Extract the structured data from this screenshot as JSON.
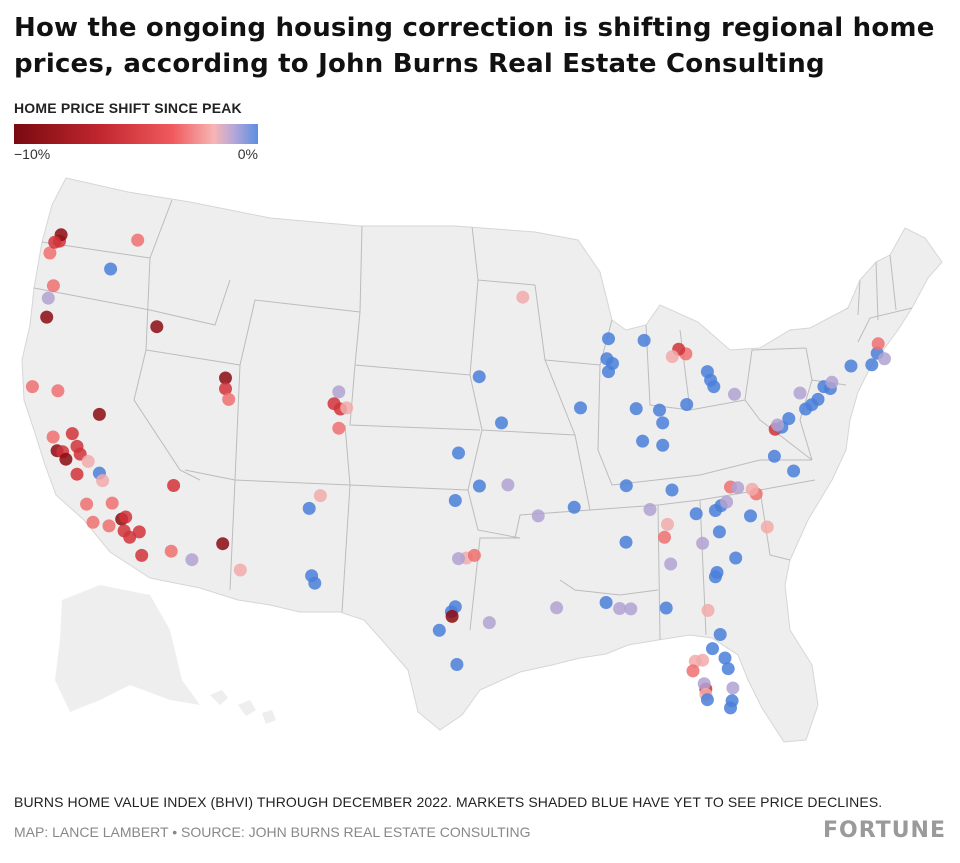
{
  "title": "How the ongoing housing correction is shifting regional home prices, according to John Burns Real Estate Consulting",
  "legend": {
    "title": "HOME PRICE SHIFT SINCE PEAK",
    "min_label": "−10%",
    "max_label": "0%"
  },
  "footnote": "BURNS HOME VALUE INDEX (BHVI) THROUGH DECEMBER 2022. MARKETS SHADED BLUE HAVE YET TO SEE PRICE DECLINES.",
  "credit": "MAP: LANCE LAMBERT • SOURCE: JOHN BURNS REAL ESTATE CONSULTING",
  "brand": "FORTUNE",
  "colors": {
    "dark_red": "#8b0a10",
    "red": "#d0333a",
    "light_red": "#ee6e6e",
    "pink": "#f2aaaa",
    "lavender": "#b0a2d2",
    "blue": "#4a7fd9",
    "land": "#eeeeee",
    "border": "#bdbdbd"
  },
  "markers": [
    {
      "lon": -122.3,
      "lat": 47.6,
      "c": "red"
    },
    {
      "lon": -122.2,
      "lat": 47.9,
      "c": "dark_red"
    },
    {
      "lon": -122.9,
      "lat": 47.05,
      "c": "light_red"
    },
    {
      "lon": -122.6,
      "lat": 47.55,
      "c": "red"
    },
    {
      "lon": -117.4,
      "lat": 47.65,
      "c": "light_red"
    },
    {
      "lon": -119.1,
      "lat": 46.3,
      "c": "blue"
    },
    {
      "lon": -122.68,
      "lat": 45.52,
      "c": "light_red"
    },
    {
      "lon": -123.0,
      "lat": 44.94,
      "c": "lavender"
    },
    {
      "lon": -123.1,
      "lat": 44.05,
      "c": "dark_red"
    },
    {
      "lon": -116.2,
      "lat": 43.6,
      "c": "dark_red"
    },
    {
      "lon": -122.4,
      "lat": 40.6,
      "c": "light_red"
    },
    {
      "lon": -124.0,
      "lat": 40.8,
      "c": "light_red"
    },
    {
      "lon": -119.8,
      "lat": 39.5,
      "c": "dark_red"
    },
    {
      "lon": -121.5,
      "lat": 38.6,
      "c": "red"
    },
    {
      "lon": -121.2,
      "lat": 38.0,
      "c": "red"
    },
    {
      "lon": -122.45,
      "lat": 37.8,
      "c": "dark_red"
    },
    {
      "lon": -122.1,
      "lat": 37.75,
      "c": "red"
    },
    {
      "lon": -121.9,
      "lat": 37.4,
      "c": "dark_red"
    },
    {
      "lon": -122.7,
      "lat": 38.44,
      "c": "light_red"
    },
    {
      "lon": -121.0,
      "lat": 37.64,
      "c": "red"
    },
    {
      "lon": -120.5,
      "lat": 37.3,
      "c": "pink"
    },
    {
      "lon": -121.2,
      "lat": 36.7,
      "c": "red"
    },
    {
      "lon": -119.8,
      "lat": 36.75,
      "c": "blue"
    },
    {
      "lon": -119.6,
      "lat": 36.4,
      "c": "pink"
    },
    {
      "lon": -120.6,
      "lat": 35.3,
      "c": "light_red"
    },
    {
      "lon": -119.0,
      "lat": 35.35,
      "c": "light_red"
    },
    {
      "lon": -118.4,
      "lat": 34.6,
      "c": "dark_red"
    },
    {
      "lon": -118.15,
      "lat": 34.7,
      "c": "red"
    },
    {
      "lon": -120.2,
      "lat": 34.45,
      "c": "light_red"
    },
    {
      "lon": -119.2,
      "lat": 34.28,
      "c": "light_red"
    },
    {
      "lon": -118.25,
      "lat": 34.05,
      "c": "red"
    },
    {
      "lon": -117.9,
      "lat": 33.75,
      "c": "red"
    },
    {
      "lon": -117.3,
      "lat": 34.0,
      "c": "red"
    },
    {
      "lon": -117.15,
      "lat": 32.9,
      "c": "red"
    },
    {
      "lon": -115.3,
      "lat": 33.1,
      "c": "light_red"
    },
    {
      "lon": -115.15,
      "lat": 36.17,
      "c": "red"
    },
    {
      "lon": -114.0,
      "lat": 32.7,
      "c": "lavender"
    },
    {
      "lon": -112.07,
      "lat": 33.45,
      "c": "dark_red"
    },
    {
      "lon": -110.97,
      "lat": 32.22,
      "c": "pink"
    },
    {
      "lon": -111.9,
      "lat": 41.2,
      "c": "dark_red"
    },
    {
      "lon": -111.9,
      "lat": 40.7,
      "c": "red"
    },
    {
      "lon": -111.7,
      "lat": 40.2,
      "c": "light_red"
    },
    {
      "lon": -104.8,
      "lat": 40.55,
      "c": "lavender"
    },
    {
      "lon": -105.1,
      "lat": 40.0,
      "c": "red"
    },
    {
      "lon": -104.7,
      "lat": 39.75,
      "c": "red"
    },
    {
      "lon": -104.3,
      "lat": 39.8,
      "c": "pink"
    },
    {
      "lon": -104.8,
      "lat": 38.85,
      "c": "light_red"
    },
    {
      "lon": -106.65,
      "lat": 35.1,
      "c": "blue"
    },
    {
      "lon": -105.95,
      "lat": 35.7,
      "c": "pink"
    },
    {
      "lon": -106.5,
      "lat": 31.95,
      "c": "blue"
    },
    {
      "lon": -106.3,
      "lat": 31.6,
      "c": "blue"
    },
    {
      "lon": -97.5,
      "lat": 35.47,
      "c": "blue"
    },
    {
      "lon": -95.99,
      "lat": 36.15,
      "c": "blue"
    },
    {
      "lon": -97.3,
      "lat": 37.69,
      "c": "blue"
    },
    {
      "lon": -94.6,
      "lat": 39.1,
      "c": "blue"
    },
    {
      "lon": -96.0,
      "lat": 41.26,
      "c": "blue"
    },
    {
      "lon": -93.27,
      "lat": 44.98,
      "c": "pink"
    },
    {
      "lon": -94.2,
      "lat": 36.2,
      "c": "lavender"
    },
    {
      "lon": -92.3,
      "lat": 34.75,
      "c": "lavender"
    },
    {
      "lon": -96.8,
      "lat": 32.78,
      "c": "pink"
    },
    {
      "lon": -97.3,
      "lat": 32.75,
      "c": "lavender"
    },
    {
      "lon": -96.3,
      "lat": 32.9,
      "c": "light_red"
    },
    {
      "lon": -97.74,
      "lat": 30.27,
      "c": "blue"
    },
    {
      "lon": -97.5,
      "lat": 30.5,
      "c": "blue"
    },
    {
      "lon": -97.7,
      "lat": 30.05,
      "c": "dark_red"
    },
    {
      "lon": -98.5,
      "lat": 29.4,
      "c": "blue"
    },
    {
      "lon": -95.37,
      "lat": 29.76,
      "c": "lavender"
    },
    {
      "lon": -97.4,
      "lat": 27.8,
      "c": "blue"
    },
    {
      "lon": -91.15,
      "lat": 30.45,
      "c": "lavender"
    },
    {
      "lon": -90.05,
      "lat": 35.15,
      "c": "blue"
    },
    {
      "lon": -87.9,
      "lat": 43.04,
      "c": "blue"
    },
    {
      "lon": -87.65,
      "lat": 41.88,
      "c": "blue"
    },
    {
      "lon": -87.9,
      "lat": 41.5,
      "c": "blue"
    },
    {
      "lon": -88.0,
      "lat": 42.1,
      "c": "blue"
    },
    {
      "lon": -85.67,
      "lat": 42.96,
      "c": "blue"
    },
    {
      "lon": -83.05,
      "lat": 42.33,
      "c": "light_red"
    },
    {
      "lon": -83.5,
      "lat": 42.55,
      "c": "red"
    },
    {
      "lon": -83.9,
      "lat": 42.2,
      "c": "pink"
    },
    {
      "lon": -89.65,
      "lat": 39.8,
      "c": "blue"
    },
    {
      "lon": -86.16,
      "lat": 39.77,
      "c": "blue"
    },
    {
      "lon": -84.5,
      "lat": 39.1,
      "c": "blue"
    },
    {
      "lon": -83.0,
      "lat": 39.96,
      "c": "blue"
    },
    {
      "lon": -84.5,
      "lat": 38.05,
      "c": "blue"
    },
    {
      "lon": -85.76,
      "lat": 38.25,
      "c": "blue"
    },
    {
      "lon": -84.7,
      "lat": 39.7,
      "c": "blue"
    },
    {
      "lon": -81.7,
      "lat": 41.5,
      "c": "blue"
    },
    {
      "lon": -81.5,
      "lat": 41.1,
      "c": "blue"
    },
    {
      "lon": -81.3,
      "lat": 40.8,
      "c": "blue"
    },
    {
      "lon": -80.0,
      "lat": 40.44,
      "c": "lavender"
    },
    {
      "lon": -86.78,
      "lat": 36.16,
      "c": "blue"
    },
    {
      "lon": -83.92,
      "lat": 35.96,
      "c": "blue"
    },
    {
      "lon": -85.3,
      "lat": 35.05,
      "c": "lavender"
    },
    {
      "lon": -86.8,
      "lat": 33.52,
      "c": "blue"
    },
    {
      "lon": -88.05,
      "lat": 30.7,
      "c": "blue"
    },
    {
      "lon": -87.2,
      "lat": 30.42,
      "c": "lavender"
    },
    {
      "lon": -86.5,
      "lat": 30.4,
      "c": "lavender"
    },
    {
      "lon": -84.28,
      "lat": 30.44,
      "c": "blue"
    },
    {
      "lon": -84.39,
      "lat": 33.75,
      "c": "light_red"
    },
    {
      "lon": -84.2,
      "lat": 34.35,
      "c": "pink"
    },
    {
      "lon": -84.0,
      "lat": 32.5,
      "c": "lavender"
    },
    {
      "lon": -82.0,
      "lat": 33.47,
      "c": "lavender"
    },
    {
      "lon": -80.84,
      "lat": 35.23,
      "c": "blue"
    },
    {
      "lon": -81.2,
      "lat": 35.0,
      "c": "blue"
    },
    {
      "lon": -80.25,
      "lat": 36.1,
      "c": "light_red"
    },
    {
      "lon": -79.8,
      "lat": 36.07,
      "c": "lavender"
    },
    {
      "lon": -78.64,
      "lat": 35.78,
      "c": "light_red"
    },
    {
      "lon": -78.9,
      "lat": 36.0,
      "c": "pink"
    },
    {
      "lon": -80.5,
      "lat": 35.4,
      "c": "lavender"
    },
    {
      "lon": -77.95,
      "lat": 34.23,
      "c": "pink"
    },
    {
      "lon": -79.0,
      "lat": 34.75,
      "c": "blue"
    },
    {
      "lon": -80.95,
      "lat": 34.0,
      "c": "blue"
    },
    {
      "lon": -79.93,
      "lat": 32.78,
      "c": "blue"
    },
    {
      "lon": -82.4,
      "lat": 34.85,
      "c": "blue"
    },
    {
      "lon": -81.1,
      "lat": 32.1,
      "c": "blue"
    },
    {
      "lon": -81.2,
      "lat": 31.9,
      "c": "blue"
    },
    {
      "lon": -81.66,
      "lat": 30.33,
      "c": "pink"
    },
    {
      "lon": -81.38,
      "lat": 28.54,
      "c": "blue"
    },
    {
      "lon": -80.9,
      "lat": 29.2,
      "c": "blue"
    },
    {
      "lon": -82.46,
      "lat": 27.95,
      "c": "pink"
    },
    {
      "lon": -82.6,
      "lat": 27.5,
      "c": "light_red"
    },
    {
      "lon": -82.0,
      "lat": 28.0,
      "c": "pink"
    },
    {
      "lon": -81.8,
      "lat": 26.65,
      "c": "red"
    },
    {
      "lon": -81.9,
      "lat": 26.9,
      "c": "lavender"
    },
    {
      "lon": -81.8,
      "lat": 26.4,
      "c": "pink"
    },
    {
      "lon": -80.6,
      "lat": 28.1,
      "c": "blue"
    },
    {
      "lon": -80.4,
      "lat": 27.6,
      "c": "blue"
    },
    {
      "lon": -80.1,
      "lat": 26.7,
      "c": "lavender"
    },
    {
      "lon": -80.15,
      "lat": 26.1,
      "c": "blue"
    },
    {
      "lon": -80.25,
      "lat": 25.77,
      "c": "blue"
    },
    {
      "lon": -81.7,
      "lat": 26.15,
      "c": "blue"
    },
    {
      "lon": -77.5,
      "lat": 37.54,
      "c": "blue"
    },
    {
      "lon": -76.3,
      "lat": 36.85,
      "c": "blue"
    },
    {
      "lon": -77.45,
      "lat": 38.8,
      "c": "red"
    },
    {
      "lon": -77.04,
      "lat": 38.9,
      "c": "blue"
    },
    {
      "lon": -77.3,
      "lat": 39.0,
      "c": "lavender"
    },
    {
      "lon": -76.6,
      "lat": 39.3,
      "c": "blue"
    },
    {
      "lon": -75.55,
      "lat": 39.75,
      "c": "blue"
    },
    {
      "lon": -75.16,
      "lat": 39.95,
      "c": "blue"
    },
    {
      "lon": -75.9,
      "lat": 40.5,
      "c": "lavender"
    },
    {
      "lon": -74.77,
      "lat": 40.2,
      "c": "blue"
    },
    {
      "lon": -74.0,
      "lat": 40.71,
      "c": "blue"
    },
    {
      "lon": -74.4,
      "lat": 40.8,
      "c": "blue"
    },
    {
      "lon": -73.9,
      "lat": 41.0,
      "c": "lavender"
    },
    {
      "lon": -72.7,
      "lat": 41.76,
      "c": "blue"
    },
    {
      "lon": -71.4,
      "lat": 41.82,
      "c": "blue"
    },
    {
      "lon": -71.06,
      "lat": 42.36,
      "c": "blue"
    },
    {
      "lon": -70.6,
      "lat": 42.1,
      "c": "lavender"
    },
    {
      "lon": -71.0,
      "lat": 42.8,
      "c": "light_red"
    }
  ]
}
